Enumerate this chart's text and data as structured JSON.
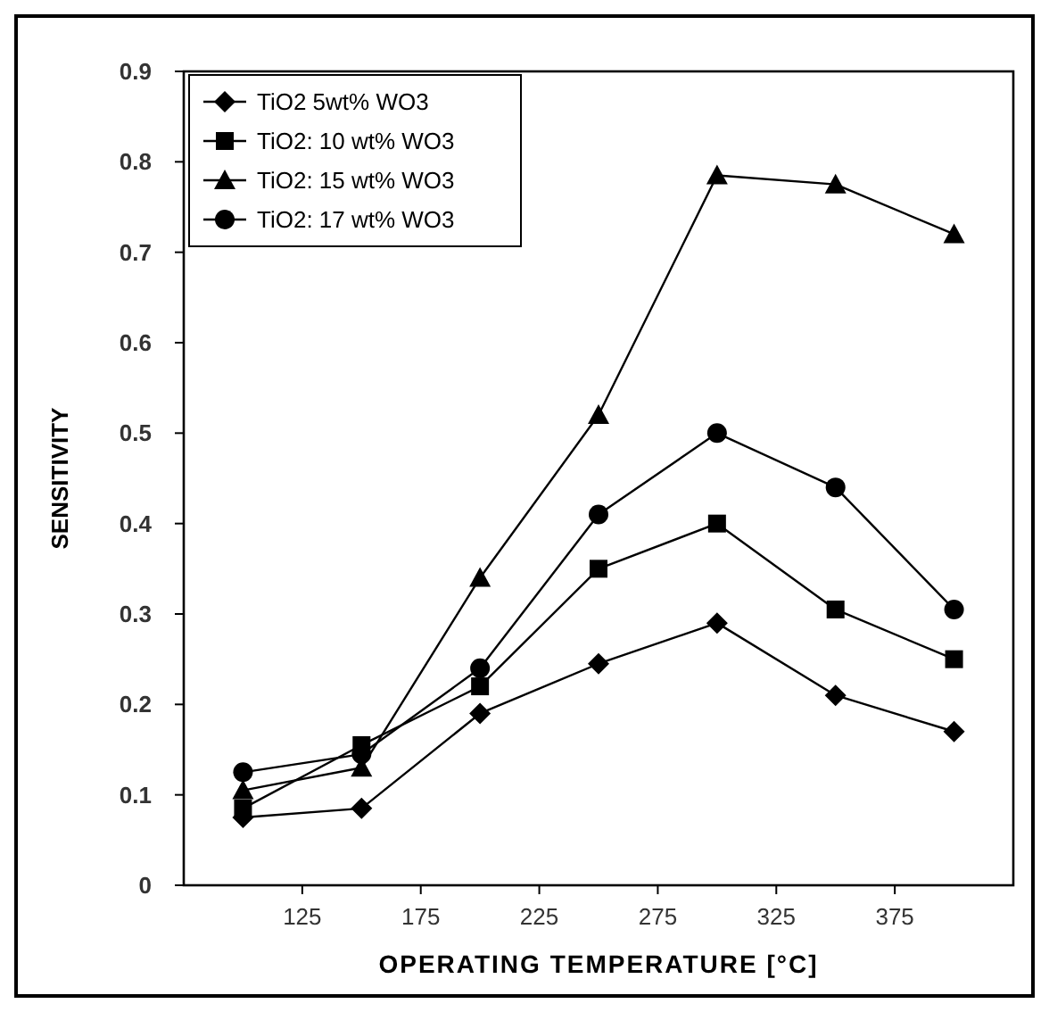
{
  "chart_data": {
    "type": "line",
    "xlabel": "OPERATING TEMPERATURE [°C]",
    "ylabel": "SENSITIVITY",
    "x": [
      100,
      150,
      200,
      250,
      300,
      350,
      400
    ],
    "series": [
      {
        "name": "TiO2 5wt% WO3",
        "color": "#000000",
        "marker": "diamond",
        "values": [
          0.075,
          0.085,
          0.19,
          0.245,
          0.29,
          0.21,
          0.17
        ]
      },
      {
        "name": "TiO2: 10 wt% WO3",
        "color": "#000000",
        "marker": "square",
        "values": [
          0.085,
          0.155,
          0.22,
          0.35,
          0.4,
          0.305,
          0.25
        ]
      },
      {
        "name": "TiO2: 15 wt% WO3",
        "color": "#000000",
        "marker": "triangle",
        "values": [
          0.105,
          0.13,
          0.34,
          0.52,
          0.785,
          0.775,
          0.72
        ]
      },
      {
        "name": "TiO2: 17 wt% WO3",
        "color": "#000000",
        "marker": "circle",
        "values": [
          0.125,
          0.145,
          0.24,
          0.41,
          0.5,
          0.44,
          0.305
        ]
      }
    ],
    "xlim": [
      75,
      425
    ],
    "xticks": [
      125,
      175,
      225,
      275,
      325,
      375
    ],
    "ylim": [
      0,
      0.9
    ],
    "yticks": [
      0,
      0.1,
      0.2,
      0.3,
      0.4,
      0.5,
      0.6,
      0.7,
      0.8,
      0.9
    ],
    "legend": "top left",
    "grid": false,
    "line_style": "solid"
  }
}
